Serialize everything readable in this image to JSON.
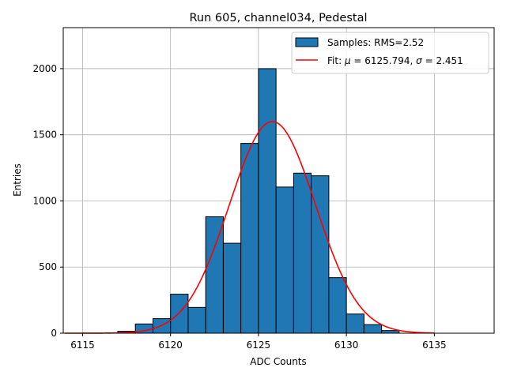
{
  "chart_data": {
    "type": "bar",
    "title": "Run 605, channel034, Pedestal",
    "xlabel": "ADC Counts",
    "ylabel": "Entries",
    "xlim": [
      6113.9,
      6138.4
    ],
    "ylim": [
      0,
      2310
    ],
    "xticks": [
      6115,
      6120,
      6125,
      6130,
      6135
    ],
    "yticks": [
      0,
      500,
      1000,
      1500,
      2000
    ],
    "grid": true,
    "legend_position": "top-right",
    "histogram": {
      "name": "Samples: RMS=2.52",
      "bin_width": 1,
      "bin_starts": [
        6117,
        6118,
        6119,
        6120,
        6121,
        6122,
        6123,
        6124,
        6125,
        6126,
        6127,
        6128,
        6129,
        6130,
        6131,
        6132
      ],
      "counts": [
        15,
        70,
        110,
        295,
        195,
        880,
        680,
        1435,
        2000,
        1105,
        1210,
        1190,
        420,
        145,
        65,
        20
      ],
      "color": "#1f77b4",
      "edge_color": "#000000"
    },
    "fit": {
      "name": "Fit: μ = 6125.794, σ = 2.451",
      "label_parts": [
        "Fit: ",
        "μ",
        " = 6125.794, ",
        "σ",
        " = 2.451"
      ],
      "mu": 6125.794,
      "sigma": 2.451,
      "amplitude": 1600,
      "x_range": [
        6114,
        6135
      ],
      "color": "#ff0000"
    }
  }
}
